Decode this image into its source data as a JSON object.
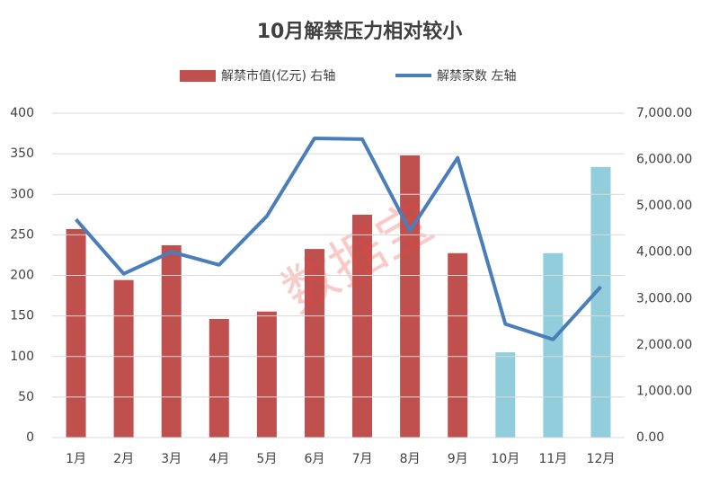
{
  "chart_data": {
    "type": "bar-line",
    "title": "10月解禁压力相对较小",
    "watermark": "数据宝",
    "categories": [
      "1月",
      "2月",
      "3月",
      "4月",
      "5月",
      "6月",
      "7月",
      "8月",
      "9月",
      "10月",
      "11月",
      "12月"
    ],
    "series": [
      {
        "name": "解禁市值(亿元) 右轴",
        "type": "bar",
        "axis": "y2",
        "color": "#c0504d",
        "colors": [
          "#c0504d",
          "#c0504d",
          "#c0504d",
          "#c0504d",
          "#c0504d",
          "#c0504d",
          "#c0504d",
          "#c0504d",
          "#c0504d",
          "#92cddc",
          "#92cddc",
          "#92cddc"
        ],
        "values": [
          4500,
          3400,
          4150,
          2560,
          2720,
          4070,
          4810,
          6090,
          3980,
          1840,
          3980,
          5840
        ]
      },
      {
        "name": "解禁家数 左轴",
        "type": "line",
        "axis": "y",
        "color": "#4a7ebb",
        "values": [
          269,
          202,
          229,
          213,
          273,
          369,
          368,
          255,
          345,
          140,
          121,
          186
        ]
      }
    ],
    "ylim": [
      0,
      400
    ],
    "yticks": [
      0,
      50,
      100,
      150,
      200,
      250,
      300,
      350,
      400
    ],
    "y2lim": [
      0,
      7000
    ],
    "y2ticks": [
      {
        "value": 0,
        "label": "0.00"
      },
      {
        "value": 1000,
        "label": "1,000.00"
      },
      {
        "value": 2000,
        "label": "2,000.00"
      },
      {
        "value": 3000,
        "label": "3,000.00"
      },
      {
        "value": 4000,
        "label": "4,000.00"
      },
      {
        "value": 5000,
        "label": "5,000.00"
      },
      {
        "value": 6000,
        "label": "6,000.00"
      },
      {
        "value": 7000,
        "label": "7,000.00"
      }
    ],
    "grid": true,
    "legend": "top"
  }
}
